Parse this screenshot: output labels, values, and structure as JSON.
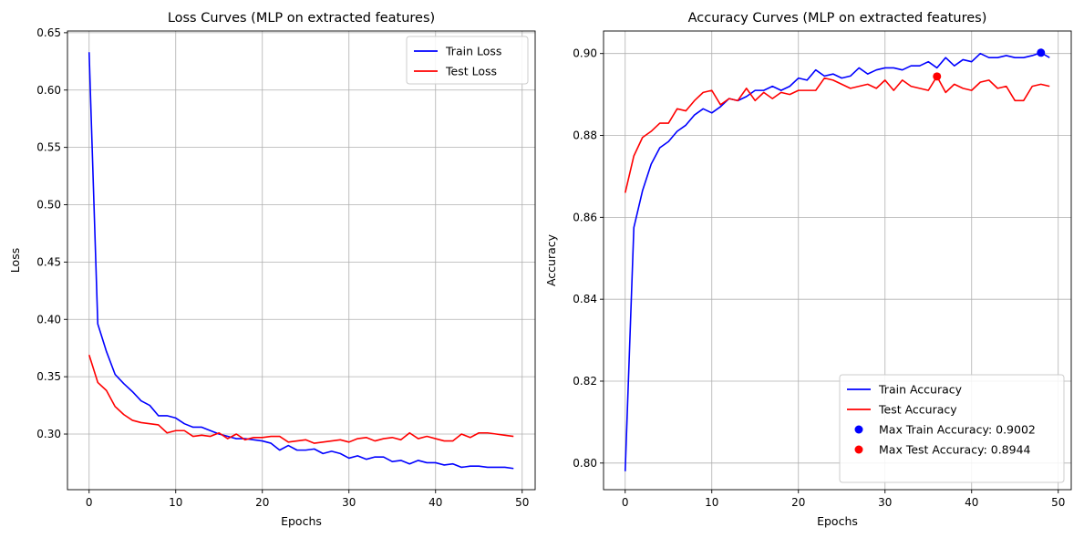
{
  "chart_data": [
    {
      "type": "line",
      "title": "Loss Curves (MLP on extracted features)",
      "xlabel": "Epochs",
      "ylabel": "Loss",
      "xlim": [
        -2.5,
        51.5
      ],
      "ylim": [
        0.2515,
        0.6515
      ],
      "xticks": [
        0,
        10,
        20,
        30,
        40,
        50
      ],
      "yticks": [
        0.3,
        0.35,
        0.4,
        0.45,
        0.5,
        0.55,
        0.6,
        0.65
      ],
      "ytick_labels": [
        "0.30",
        "0.35",
        "0.40",
        "0.45",
        "0.50",
        "0.55",
        "0.60",
        "0.65"
      ],
      "grid": true,
      "legend": "top-right",
      "x": [
        0,
        1,
        2,
        3,
        4,
        5,
        6,
        7,
        8,
        9,
        10,
        11,
        12,
        13,
        14,
        15,
        16,
        17,
        18,
        19,
        20,
        21,
        22,
        23,
        24,
        25,
        26,
        27,
        28,
        29,
        30,
        31,
        32,
        33,
        34,
        35,
        36,
        37,
        38,
        39,
        40,
        41,
        42,
        43,
        44,
        45,
        46,
        47,
        48,
        49
      ],
      "series": [
        {
          "name": "Train Loss",
          "color": "#0000ff",
          "values": [
            0.633,
            0.396,
            0.372,
            0.352,
            0.344,
            0.337,
            0.329,
            0.325,
            0.316,
            0.316,
            0.314,
            0.309,
            0.306,
            0.306,
            0.303,
            0.3,
            0.298,
            0.296,
            0.296,
            0.295,
            0.294,
            0.292,
            0.286,
            0.29,
            0.286,
            0.286,
            0.287,
            0.283,
            0.285,
            0.283,
            0.279,
            0.281,
            0.278,
            0.28,
            0.28,
            0.276,
            0.277,
            0.274,
            0.277,
            0.275,
            0.275,
            0.273,
            0.274,
            0.271,
            0.272,
            0.272,
            0.271,
            0.271,
            0.271,
            0.27
          ]
        },
        {
          "name": "Test Loss",
          "color": "#ff0000",
          "values": [
            0.369,
            0.345,
            0.338,
            0.324,
            0.317,
            0.312,
            0.31,
            0.309,
            0.308,
            0.301,
            0.303,
            0.303,
            0.298,
            0.299,
            0.298,
            0.301,
            0.296,
            0.3,
            0.295,
            0.297,
            0.297,
            0.298,
            0.298,
            0.293,
            0.294,
            0.295,
            0.292,
            0.293,
            0.294,
            0.295,
            0.293,
            0.296,
            0.297,
            0.294,
            0.296,
            0.297,
            0.295,
            0.301,
            0.296,
            0.298,
            0.296,
            0.294,
            0.294,
            0.3,
            0.297,
            0.301,
            0.301,
            0.3,
            0.299,
            0.298
          ]
        }
      ]
    },
    {
      "type": "line",
      "title": "Accuracy Curves (MLP on extracted features)",
      "xlabel": "Epochs",
      "ylabel": "Accuracy",
      "xlim": [
        -2.5,
        51.5
      ],
      "ylim": [
        0.7935,
        0.9055
      ],
      "xticks": [
        0,
        10,
        20,
        30,
        40,
        50
      ],
      "yticks": [
        0.8,
        0.82,
        0.84,
        0.86,
        0.88,
        0.9
      ],
      "ytick_labels": [
        "0.80",
        "0.82",
        "0.84",
        "0.86",
        "0.88",
        "0.90"
      ],
      "grid": true,
      "legend": "bottom-right",
      "x": [
        0,
        1,
        2,
        3,
        4,
        5,
        6,
        7,
        8,
        9,
        10,
        11,
        12,
        13,
        14,
        15,
        16,
        17,
        18,
        19,
        20,
        21,
        22,
        23,
        24,
        25,
        26,
        27,
        28,
        29,
        30,
        31,
        32,
        33,
        34,
        35,
        36,
        37,
        38,
        39,
        40,
        41,
        42,
        43,
        44,
        45,
        46,
        47,
        48,
        49
      ],
      "series": [
        {
          "name": "Train Accuracy",
          "color": "#0000ff",
          "values": [
            0.798,
            0.8575,
            0.8665,
            0.873,
            0.877,
            0.8785,
            0.881,
            0.8825,
            0.885,
            0.8865,
            0.8855,
            0.887,
            0.889,
            0.8885,
            0.8895,
            0.891,
            0.891,
            0.892,
            0.891,
            0.892,
            0.894,
            0.8935,
            0.896,
            0.8945,
            0.895,
            0.894,
            0.8945,
            0.8965,
            0.895,
            0.896,
            0.8965,
            0.8965,
            0.896,
            0.897,
            0.897,
            0.898,
            0.8965,
            0.899,
            0.897,
            0.8985,
            0.898,
            0.9,
            0.899,
            0.899,
            0.8995,
            0.899,
            0.899,
            0.8995,
            0.9002,
            0.899
          ]
        },
        {
          "name": "Test Accuracy",
          "color": "#ff0000",
          "values": [
            0.866,
            0.875,
            0.8795,
            0.881,
            0.883,
            0.883,
            0.8865,
            0.886,
            0.8885,
            0.8905,
            0.891,
            0.8875,
            0.889,
            0.8885,
            0.8915,
            0.8885,
            0.8905,
            0.889,
            0.8905,
            0.89,
            0.891,
            0.891,
            0.891,
            0.894,
            0.8935,
            0.8925,
            0.8915,
            0.892,
            0.8925,
            0.8915,
            0.8935,
            0.891,
            0.8935,
            0.892,
            0.8915,
            0.891,
            0.8944,
            0.8905,
            0.8925,
            0.8915,
            0.891,
            0.893,
            0.8935,
            0.8915,
            0.892,
            0.8885,
            0.8885,
            0.892,
            0.8925,
            0.892
          ]
        }
      ],
      "markers": [
        {
          "name": "Max Train Accuracy: 0.9002",
          "color": "#0000ff",
          "x": 48,
          "y": 0.9002
        },
        {
          "name": "Max Test Accuracy: 0.8944",
          "color": "#ff0000",
          "x": 36,
          "y": 0.8944
        }
      ]
    }
  ]
}
